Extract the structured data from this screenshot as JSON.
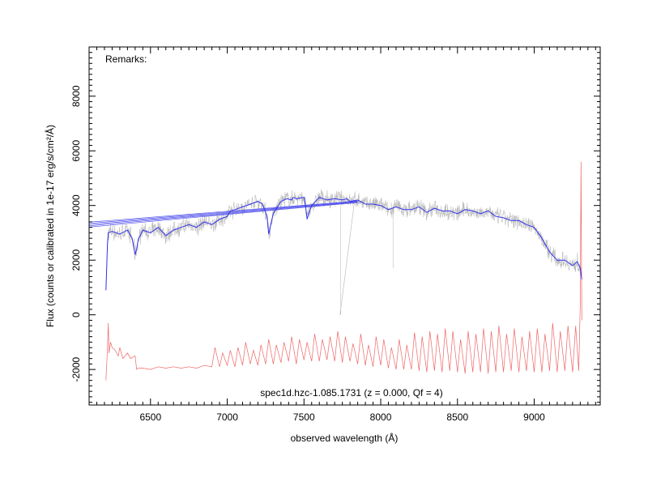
{
  "chart_data": {
    "type": "line",
    "title": "",
    "xlabel": "observed wavelength (Å)",
    "ylabel": "Flux (counts or calibrated in 1e-17 erg/s/cm²/Å)",
    "xlim": [
      6100,
      9430
    ],
    "ylim": [
      -3300,
      9800
    ],
    "grid": false,
    "x_ticks": [
      6500,
      7000,
      7500,
      8000,
      8500,
      9000
    ],
    "y_ticks": [
      -2000,
      0,
      2000,
      4000,
      6000,
      8000
    ],
    "annotations": {
      "remarks": "Remarks:",
      "caption": "spec1d.hzc-1.085.1731 (z = 0.000, Qf = 4)"
    },
    "colors": {
      "raw": "#b4b4b4",
      "smoothed": "#3333ee",
      "error": "#ee6666",
      "bands": "#5555ee"
    },
    "series": [
      {
        "role": "smoothed",
        "x": [
          6210,
          6215,
          6220,
          6225,
          6250,
          6300,
          6350,
          6380,
          6400,
          6410,
          6420,
          6450,
          6500,
          6550,
          6600,
          6650,
          6700,
          6750,
          6800,
          6850,
          6900,
          6950,
          7000,
          7020,
          7050,
          7100,
          7150,
          7200,
          7230,
          7260,
          7270,
          7300,
          7350,
          7390,
          7420,
          7430,
          7450,
          7500,
          7510,
          7520,
          7530,
          7550,
          7600,
          7650,
          7700,
          7750,
          7780,
          7800,
          7850,
          7900,
          7950,
          8000,
          8050,
          8100,
          8150,
          8200,
          8250,
          8300,
          8350,
          8400,
          8450,
          8500,
          8550,
          8600,
          8650,
          8700,
          8750,
          8800,
          8850,
          8900,
          8950,
          9000,
          9050,
          9100,
          9150,
          9200,
          9250,
          9280,
          9300,
          9310
        ],
        "y": [
          900,
          1800,
          2600,
          3000,
          3050,
          2950,
          3100,
          2800,
          2200,
          2400,
          2750,
          3100,
          3000,
          3200,
          2900,
          3100,
          3200,
          3300,
          3200,
          3400,
          3300,
          3500,
          3600,
          3800,
          3850,
          3950,
          4050,
          4150,
          4050,
          3600,
          2950,
          3700,
          4150,
          4250,
          4200,
          4300,
          4250,
          4300,
          4000,
          3500,
          3700,
          4000,
          4300,
          4200,
          4250,
          4200,
          4250,
          4150,
          4200,
          4050,
          4050,
          4000,
          3850,
          3950,
          3850,
          3850,
          3950,
          3750,
          3900,
          3800,
          3800,
          3700,
          3850,
          3800,
          3700,
          3800,
          3600,
          3550,
          3450,
          3450,
          3300,
          3200,
          2800,
          2300,
          2000,
          2000,
          1800,
          1950,
          1700,
          1300
        ]
      },
      {
        "role": "error",
        "x": [
          6210,
          6220,
          6225,
          6230,
          6240,
          6250,
          6270,
          6290,
          6300,
          6320,
          6350,
          6370,
          6400,
          6410,
          6420,
          6450,
          6500,
          6550,
          6600,
          6650,
          6700,
          6750,
          6800,
          6850,
          6900,
          6920,
          6950,
          6970,
          7000,
          7020,
          7050,
          7070,
          7100,
          7120,
          7150,
          7170,
          7200,
          7220,
          7250,
          7270,
          7300,
          7320,
          7350,
          7370,
          7400,
          7420,
          7450,
          7470,
          7500,
          7520,
          7550,
          7570,
          7600,
          7620,
          7650,
          7670,
          7700,
          7720,
          7750,
          7770,
          7800,
          7820,
          7850,
          7870,
          7900,
          7920,
          7950,
          7970,
          8000,
          8020,
          8050,
          8070,
          8100,
          8120,
          8150,
          8170,
          8200,
          8220,
          8250,
          8270,
          8300,
          8320,
          8350,
          8370,
          8400,
          8420,
          8450,
          8470,
          8500,
          8520,
          8550,
          8570,
          8600,
          8620,
          8650,
          8670,
          8700,
          8720,
          8750,
          8770,
          8800,
          8820,
          8850,
          8870,
          8900,
          8920,
          8950,
          8970,
          9000,
          9020,
          9050,
          9070,
          9100,
          9120,
          9150,
          9170,
          9200,
          9220,
          9250,
          9270,
          9290,
          9300,
          9305,
          9310
        ],
        "y": [
          -2400,
          -1200,
          -300,
          -1400,
          -1000,
          -1200,
          -1300,
          -1500,
          -1200,
          -1600,
          -1400,
          -1600,
          -1500,
          -2000,
          -1950,
          -1950,
          -2000,
          -1900,
          -1950,
          -1900,
          -1950,
          -1900,
          -1950,
          -1850,
          -1900,
          -1200,
          -1900,
          -1400,
          -1850,
          -1300,
          -1900,
          -1200,
          -1850,
          -1000,
          -1800,
          -1300,
          -1850,
          -1100,
          -1800,
          -900,
          -1800,
          -1100,
          -1750,
          -1000,
          -1700,
          -800,
          -1800,
          -900,
          -1650,
          -1000,
          -1700,
          -700,
          -1700,
          -900,
          -1650,
          -800,
          -1700,
          -600,
          -1750,
          -800,
          -1700,
          -1050,
          -1800,
          -700,
          -1850,
          -1100,
          -1900,
          -800,
          -1850,
          -900,
          -1950,
          -1200,
          -2000,
          -900,
          -2000,
          -1100,
          -2000,
          -650,
          -2050,
          -800,
          -2100,
          -600,
          -2050,
          -700,
          -2100,
          -500,
          -2050,
          -600,
          -2100,
          -900,
          -2150,
          -600,
          -2100,
          -700,
          -2100,
          -500,
          -2150,
          -600,
          -2100,
          -400,
          -2100,
          -700,
          -2050,
          -500,
          -2100,
          -800,
          -2050,
          -600,
          -2100,
          -500,
          -2100,
          -700,
          -2050,
          -300,
          -2100,
          -600,
          -2050,
          -400,
          -2100,
          -400,
          -2050,
          400,
          5600,
          -200
        ]
      },
      {
        "role": "bands",
        "x": [
          6100,
          7850
        ],
        "y": [
          3300,
          4150
        ]
      }
    ]
  }
}
